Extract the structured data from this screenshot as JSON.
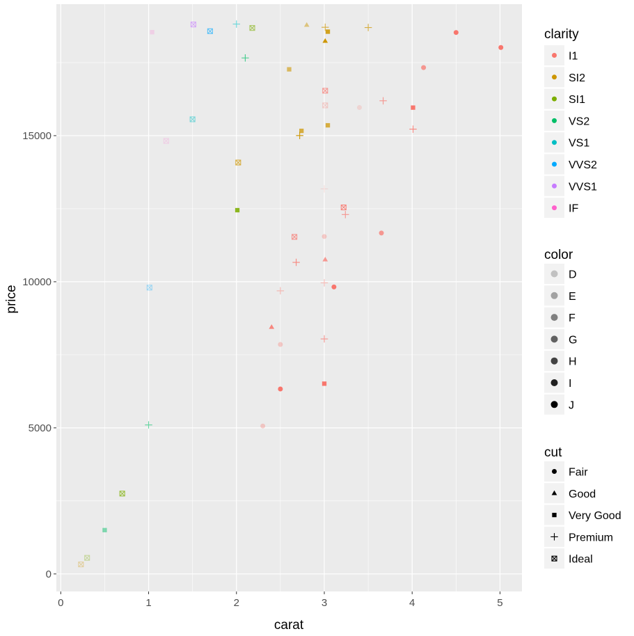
{
  "chart_data": {
    "type": "scatter",
    "title": "",
    "xlabel": "carat",
    "ylabel": "price",
    "xlim": [
      -0.05,
      5.25
    ],
    "ylim": [
      -600,
      19500
    ],
    "x_ticks": [
      0,
      1,
      2,
      3,
      4,
      5
    ],
    "y_ticks": [
      0,
      5000,
      10000,
      15000
    ],
    "grid": true,
    "legend_position": "right",
    "legends": {
      "clarity": {
        "title": "clarity",
        "items": [
          {
            "label": "I1",
            "color": "#F8766D"
          },
          {
            "label": "SI2",
            "color": "#CD9600"
          },
          {
            "label": "SI1",
            "color": "#7CAE00"
          },
          {
            "label": "VS2",
            "color": "#00BE67"
          },
          {
            "label": "VS1",
            "color": "#00BFC4"
          },
          {
            "label": "VVS2",
            "color": "#00A9FF"
          },
          {
            "label": "VVS1",
            "color": "#C77CFF"
          },
          {
            "label": "IF",
            "color": "#FF61CC"
          }
        ]
      },
      "color": {
        "title": "color",
        "items": [
          {
            "label": "D",
            "alpha": 0.2
          },
          {
            "label": "E",
            "alpha": 0.33
          },
          {
            "label": "F",
            "alpha": 0.47
          },
          {
            "label": "G",
            "alpha": 0.6
          },
          {
            "label": "H",
            "alpha": 0.73
          },
          {
            "label": "I",
            "alpha": 0.87
          },
          {
            "label": "J",
            "alpha": 1.0
          }
        ]
      },
      "cut": {
        "title": "cut",
        "items": [
          {
            "label": "Fair",
            "shape": "circle"
          },
          {
            "label": "Good",
            "shape": "triangle"
          },
          {
            "label": "Very Good",
            "shape": "square"
          },
          {
            "label": "Premium",
            "shape": "plus"
          },
          {
            "label": "Ideal",
            "shape": "square-cross"
          }
        ]
      }
    },
    "points": [
      {
        "x": 5.01,
        "y": 18018,
        "clarity": "I1",
        "color": "J",
        "cut": "Fair"
      },
      {
        "x": 4.5,
        "y": 18531,
        "clarity": "I1",
        "color": "J",
        "cut": "Fair"
      },
      {
        "x": 4.13,
        "y": 17329,
        "clarity": "I1",
        "color": "H",
        "cut": "Fair"
      },
      {
        "x": 4.01,
        "y": 15223,
        "clarity": "I1",
        "color": "I",
        "cut": "Premium"
      },
      {
        "x": 4.01,
        "y": 15960,
        "clarity": "I1",
        "color": "J",
        "cut": "Very Good"
      },
      {
        "x": 3.67,
        "y": 16193,
        "clarity": "I1",
        "color": "H",
        "cut": "Premium"
      },
      {
        "x": 3.65,
        "y": 11668,
        "clarity": "I1",
        "color": "H",
        "cut": "Fair"
      },
      {
        "x": 3.5,
        "y": 18701,
        "clarity": "SI2",
        "color": "H",
        "cut": "Premium"
      },
      {
        "x": 3.4,
        "y": 15964,
        "clarity": "I1",
        "color": "D",
        "cut": "Fair"
      },
      {
        "x": 3.24,
        "y": 12300,
        "clarity": "I1",
        "color": "H",
        "cut": "Premium"
      },
      {
        "x": 3.22,
        "y": 12545,
        "clarity": "I1",
        "color": "I",
        "cut": "Ideal"
      },
      {
        "x": 3.11,
        "y": 9823,
        "clarity": "I1",
        "color": "J",
        "cut": "Fair"
      },
      {
        "x": 3.04,
        "y": 18559,
        "clarity": "SI2",
        "color": "I",
        "cut": "Very Good"
      },
      {
        "x": 3.04,
        "y": 15354,
        "clarity": "SI2",
        "color": "H",
        "cut": "Very Good"
      },
      {
        "x": 3.01,
        "y": 18710,
        "clarity": "SI2",
        "color": "H",
        "cut": "Premium"
      },
      {
        "x": 3.01,
        "y": 18242,
        "clarity": "SI2",
        "color": "J",
        "cut": "Good"
      },
      {
        "x": 3.01,
        "y": 16538,
        "clarity": "I1",
        "color": "H",
        "cut": "Ideal"
      },
      {
        "x": 3.01,
        "y": 16037,
        "clarity": "I1",
        "color": "E",
        "cut": "Ideal"
      },
      {
        "x": 3.0,
        "y": 13178,
        "clarity": "I1",
        "color": "D",
        "cut": "Premium"
      },
      {
        "x": 3.0,
        "y": 11548,
        "clarity": "I1",
        "color": "E",
        "cut": "Fair"
      },
      {
        "x": 3.01,
        "y": 10761,
        "clarity": "I1",
        "color": "H",
        "cut": "Good"
      },
      {
        "x": 3.0,
        "y": 9962,
        "clarity": "I1",
        "color": "F",
        "cut": "Premium"
      },
      {
        "x": 3.0,
        "y": 8044,
        "clarity": "I1",
        "color": "H",
        "cut": "Premium"
      },
      {
        "x": 3.0,
        "y": 6512,
        "clarity": "I1",
        "color": "J",
        "cut": "Very Good"
      },
      {
        "x": 2.8,
        "y": 18788,
        "clarity": "SI2",
        "color": "F",
        "cut": "Good"
      },
      {
        "x": 2.74,
        "y": 15164,
        "clarity": "SI2",
        "color": "H",
        "cut": "Very Good"
      },
      {
        "x": 2.72,
        "y": 15004,
        "clarity": "SI2",
        "color": "J",
        "cut": "Premium"
      },
      {
        "x": 2.68,
        "y": 10664,
        "clarity": "I1",
        "color": "I",
        "cut": "Premium"
      },
      {
        "x": 2.66,
        "y": 11535,
        "clarity": "I1",
        "color": "H",
        "cut": "Ideal"
      },
      {
        "x": 2.6,
        "y": 17270,
        "clarity": "SI2",
        "color": "G",
        "cut": "Very Good"
      },
      {
        "x": 2.5,
        "y": 9690,
        "clarity": "I1",
        "color": "F",
        "cut": "Premium"
      },
      {
        "x": 2.5,
        "y": 7854,
        "clarity": "I1",
        "color": "E",
        "cut": "Fair"
      },
      {
        "x": 2.5,
        "y": 6330,
        "clarity": "I1",
        "color": "J",
        "cut": "Fair"
      },
      {
        "x": 2.4,
        "y": 8450,
        "clarity": "I1",
        "color": "I",
        "cut": "Good"
      },
      {
        "x": 2.3,
        "y": 5063,
        "clarity": "I1",
        "color": "E",
        "cut": "Fair"
      },
      {
        "x": 2.18,
        "y": 18686,
        "clarity": "SI1",
        "color": "G",
        "cut": "Ideal"
      },
      {
        "x": 2.1,
        "y": 17660,
        "clarity": "VS2",
        "color": "H",
        "cut": "Premium"
      },
      {
        "x": 2.0,
        "y": 18818,
        "clarity": "VS1",
        "color": "G",
        "cut": "Premium"
      },
      {
        "x": 2.02,
        "y": 14080,
        "clarity": "SI2",
        "color": "H",
        "cut": "Ideal"
      },
      {
        "x": 2.01,
        "y": 12450,
        "clarity": "SI1",
        "color": "I",
        "cut": "Very Good"
      },
      {
        "x": 1.7,
        "y": 18575,
        "clarity": "VVS2",
        "color": "G",
        "cut": "Ideal"
      },
      {
        "x": 1.51,
        "y": 18806,
        "clarity": "VVS1",
        "color": "G",
        "cut": "Ideal"
      },
      {
        "x": 1.5,
        "y": 15560,
        "clarity": "VS1",
        "color": "F",
        "cut": "Ideal"
      },
      {
        "x": 1.2,
        "y": 14820,
        "clarity": "IF",
        "color": "D",
        "cut": "Ideal"
      },
      {
        "x": 1.04,
        "y": 18542,
        "clarity": "IF",
        "color": "D",
        "cut": "Very Good"
      },
      {
        "x": 1.01,
        "y": 9800,
        "clarity": "VVS2",
        "color": "E",
        "cut": "Ideal"
      },
      {
        "x": 1.0,
        "y": 5100,
        "clarity": "VS2",
        "color": "G",
        "cut": "Premium"
      },
      {
        "x": 0.7,
        "y": 2750,
        "clarity": "SI1",
        "color": "H",
        "cut": "Ideal"
      },
      {
        "x": 0.5,
        "y": 1500,
        "clarity": "VS2",
        "color": "F",
        "cut": "Very Good"
      },
      {
        "x": 0.3,
        "y": 550,
        "clarity": "SI1",
        "color": "E",
        "cut": "Ideal"
      },
      {
        "x": 0.23,
        "y": 326,
        "clarity": "SI2",
        "color": "E",
        "cut": "Ideal"
      }
    ]
  }
}
